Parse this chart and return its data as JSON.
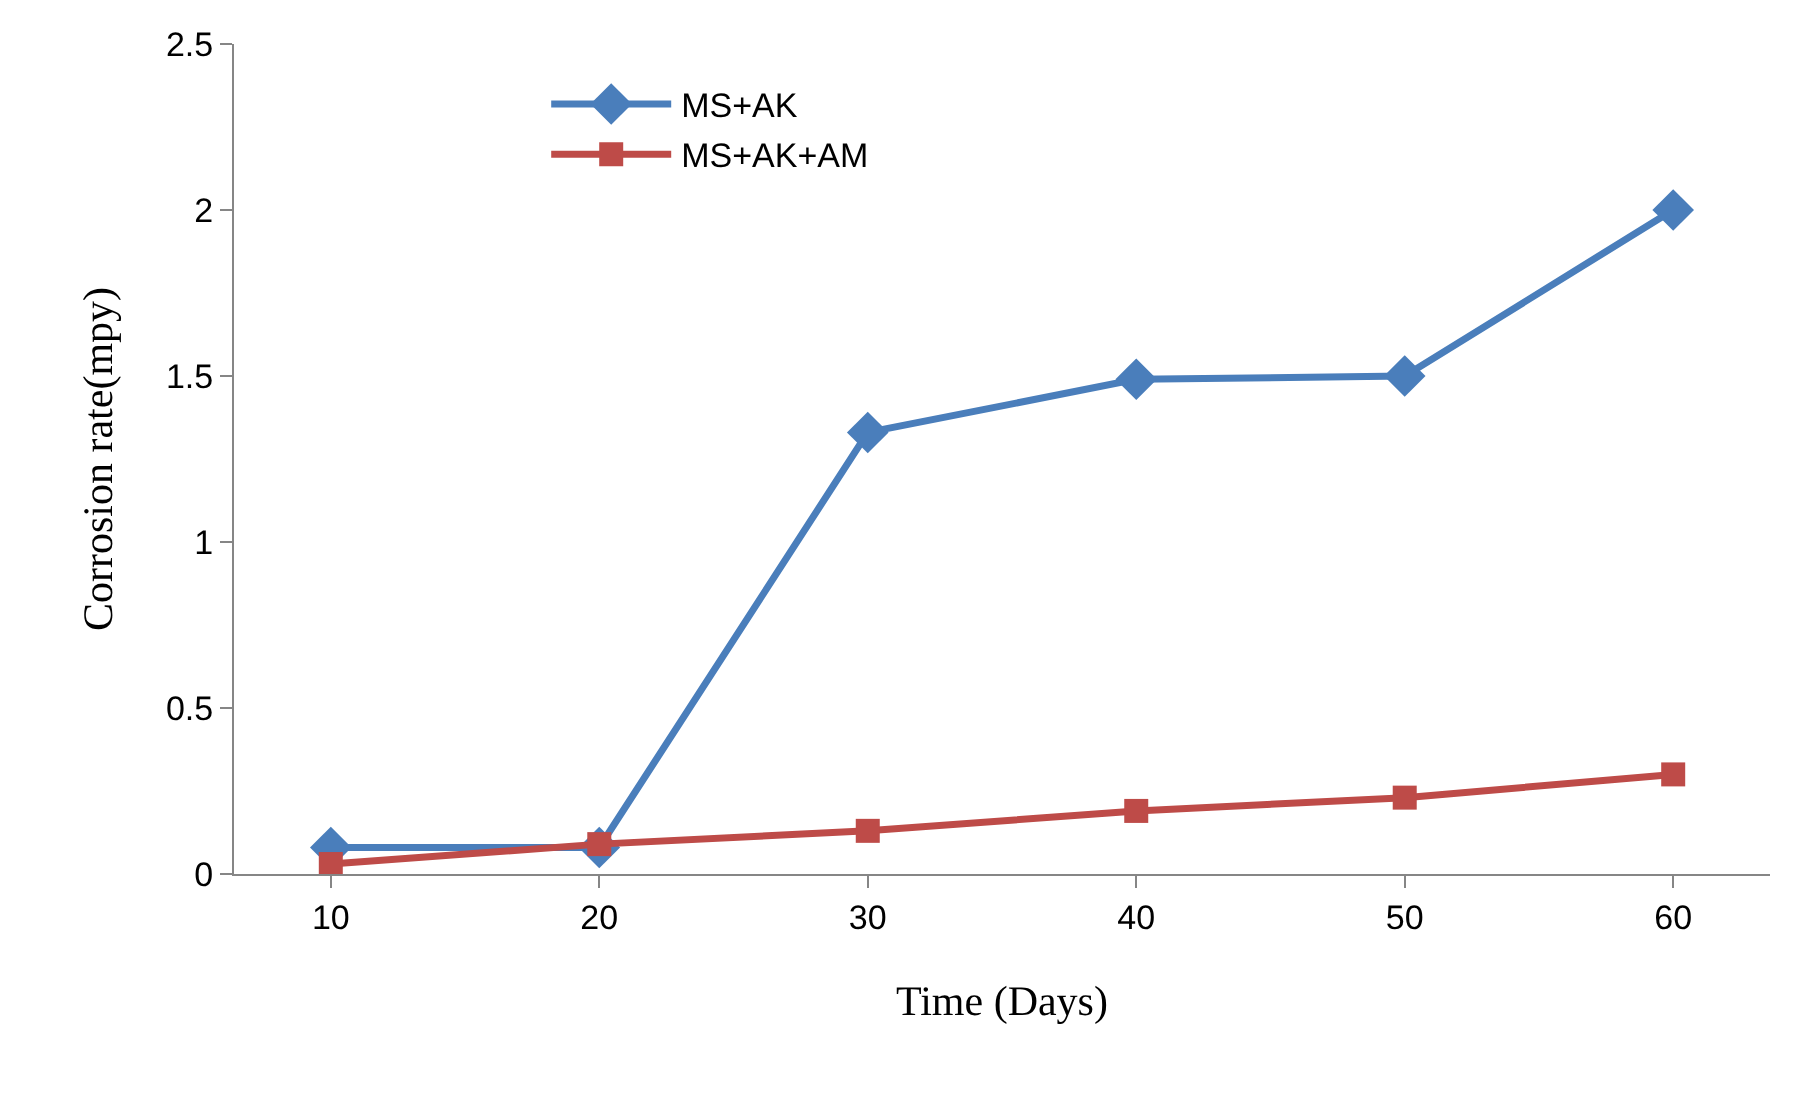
{
  "chart_data": {
    "type": "line",
    "xlabel": "Time (Days)",
    "ylabel": "Corrosion rate(mpy)",
    "categories": [
      "10",
      "20",
      "30",
      "40",
      "50",
      "60"
    ],
    "series": [
      {
        "name": "MS+AK",
        "color": "#4a7ebb",
        "values": [
          0.08,
          0.08,
          1.33,
          1.49,
          1.5,
          2.0
        ],
        "marker": "diamond"
      },
      {
        "name": "MS+AK+AM",
        "color": "#be4b48",
        "values": [
          0.03,
          0.09,
          0.13,
          0.19,
          0.23,
          0.3
        ],
        "marker": "square"
      }
    ],
    "ylim": [
      0,
      2.5
    ],
    "yticks": [
      0,
      0.5,
      1,
      1.5,
      2,
      2.5
    ],
    "grid": false,
    "legend": "top left",
    "line_style": "solid"
  }
}
